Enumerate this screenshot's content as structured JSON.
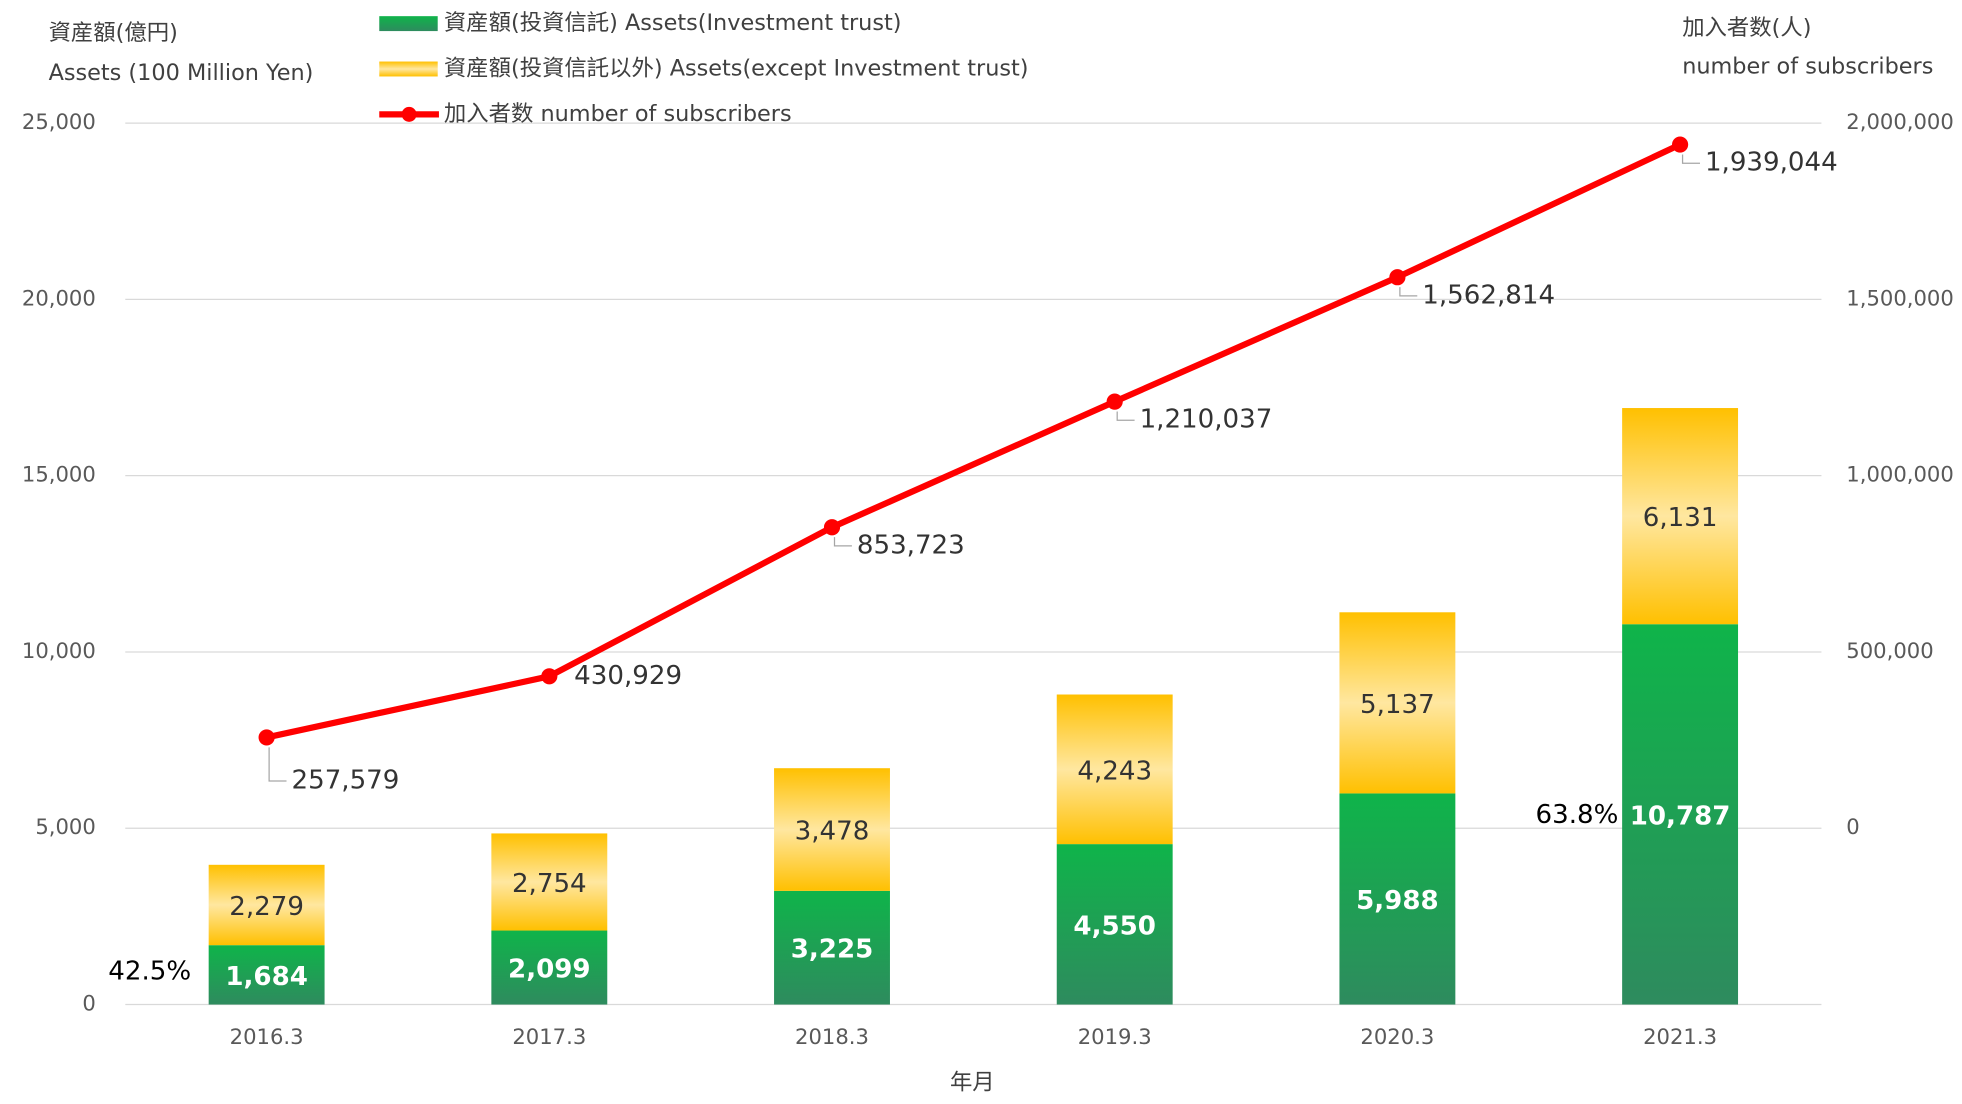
{
  "chart_data": {
    "type": "bar",
    "y_label": [
      "資産額(億円)",
      "Assets (100 Million Yen)"
    ],
    "y2_label": [
      "加入者数(人)",
      "number of subscribers"
    ],
    "x_label": "年月",
    "categories": [
      "2016.3",
      "2017.3",
      "2018.3",
      "2019.3",
      "2020.3",
      "2021.3"
    ],
    "series": [
      {
        "name": "資産額(投資信託) Assets(Investment trust)",
        "color": "#13b04b",
        "values": [
          1684,
          2099,
          3225,
          4550,
          5988,
          10787
        ],
        "value_labels": [
          "1,684",
          "2,099",
          "3,225",
          "4,550",
          "5,988",
          "10,787"
        ]
      },
      {
        "name": "資産額(投資信託以外) Assets(except Investment trust)",
        "color": "#ffc000",
        "values": [
          2279,
          2754,
          3478,
          4243,
          5137,
          6131
        ],
        "value_labels": [
          "2,279",
          "2,754",
          "3,478",
          "4,243",
          "5,137",
          "6,131"
        ]
      },
      {
        "name": "加入者数 number of subscribers",
        "color": "#ff0000",
        "type": "line",
        "axis": "y2",
        "values": [
          257579,
          430929,
          853723,
          1210037,
          1562814,
          1939044
        ],
        "value_labels": [
          "257,579",
          "430,929",
          "853,723",
          "1,210,037",
          "1,562,814",
          "1,939,044"
        ]
      }
    ],
    "ylim": [
      0,
      25000
    ],
    "yticks": [
      0,
      {
        "value": 5000,
        "label": "5,000"
      },
      {
        "value": 10000,
        "label": "10,000"
      },
      {
        "value": 15000,
        "label": "15,000"
      },
      {
        "value": 20000,
        "label": "20,000"
      },
      {
        "value": 25000,
        "label": "25,000"
      }
    ],
    "y2lim": [
      -500000,
      2000000
    ],
    "y2ticks": [
      0,
      {
        "value": 500000,
        "label": "500,000"
      },
      {
        "value": 1000000,
        "label": "1,000,000"
      },
      {
        "value": 1500000,
        "label": "1,500,000"
      },
      {
        "value": 2000000,
        "label": "2,000,000"
      }
    ],
    "grid": true,
    "annotations": [
      "42.5%",
      "63.8%"
    ]
  }
}
